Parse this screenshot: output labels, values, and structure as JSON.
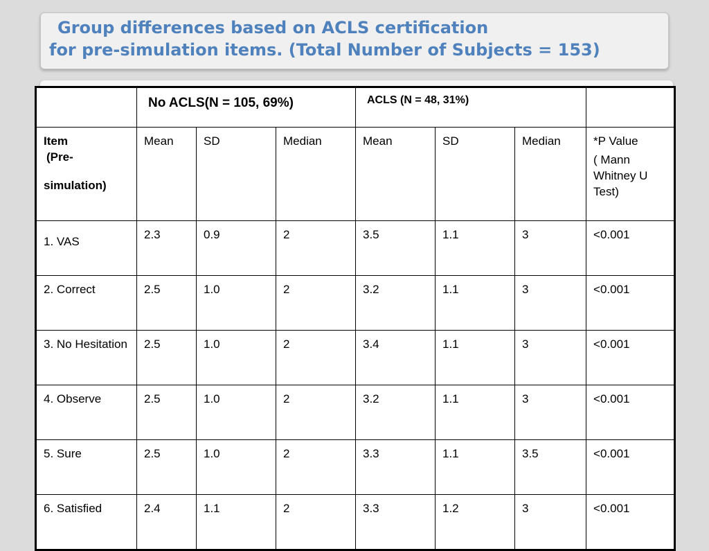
{
  "title": {
    "line1": "Group differences based on ACLS certification",
    "line2": "for  pre-simulation items. (Total Number of Subjects = 153)"
  },
  "table": {
    "groups": {
      "no_acls": "No ACLS(N = 105, 69%)",
      "acls": "ACLS (N = 48, 31%)"
    },
    "item_header": {
      "line1": "Item",
      "line2": "(Pre-",
      "line3": "simulation)"
    },
    "stat_headers": {
      "mean": "Mean",
      "sd": "SD",
      "median": "Median"
    },
    "p_header": {
      "line1": "*P Value",
      "line2": "( Mann Whitney U Test)"
    },
    "rows": [
      {
        "item": "1. VAS",
        "mean1": "2.3",
        "sd1": "0.9",
        "median1": "2",
        "mean2": "3.5",
        "sd2": "1.1",
        "median2": "3",
        "p": "<0.001"
      },
      {
        "item": "2. Correct",
        "mean1": "2.5",
        "sd1": "1.0",
        "median1": "2",
        "mean2": "3.2",
        "sd2": "1.1",
        "median2": "3",
        "p": "<0.001"
      },
      {
        "item": "3. No Hesitation",
        "mean1": "2.5",
        "sd1": "1.0",
        "median1": "2",
        "mean2": "3.4",
        "sd2": "1.1",
        "median2": "3",
        "p": "<0.001"
      },
      {
        "item": "4. Observe",
        "mean1": "2.5",
        "sd1": "1.0",
        "median1": "2",
        "mean2": "3.2",
        "sd2": "1.1",
        "median2": "3",
        "p": "<0.001"
      },
      {
        "item": "5. Sure",
        "mean1": "2.5",
        "sd1": "1.0",
        "median1": "2",
        "mean2": "3.3",
        "sd2": "1.1",
        "median2": "3.5",
        "p": "<0.001"
      },
      {
        "item": "6. Satisfied",
        "mean1": "2.4",
        "sd1": "1.1",
        "median1": "2",
        "mean2": "3.3",
        "sd2": "1.2",
        "median2": "3",
        "p": "<0.001"
      }
    ]
  }
}
